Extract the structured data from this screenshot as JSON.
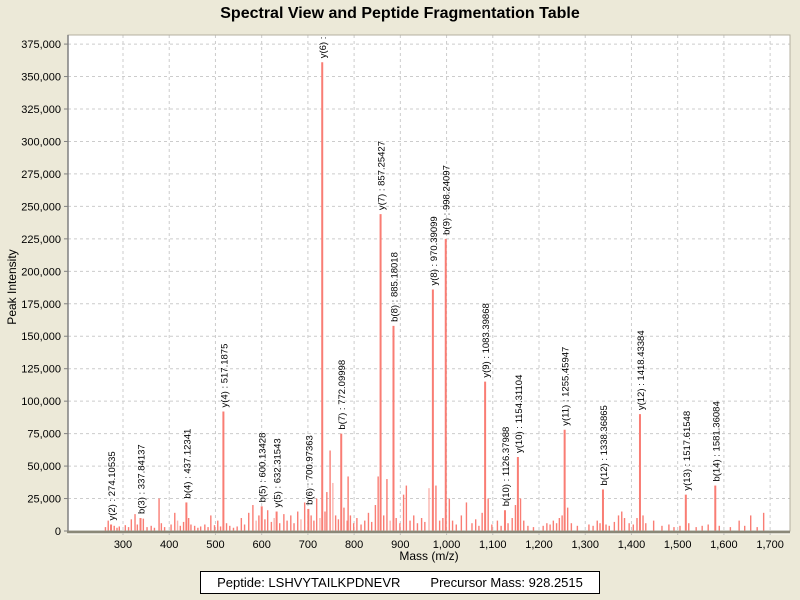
{
  "title": "Spectral View and Peptide Fragmentation Table",
  "footer": {
    "peptide_text": "Peptide: LSHVYTAILKPDNEVR",
    "precursor_text": "Precursor Mass: 928.2515"
  },
  "chart_data": {
    "type": "bar",
    "subtype": "mass-spectrum-stick-plot",
    "title": "Spectral View and Peptide Fragmentation Table",
    "xlabel": "Mass (m/z)",
    "ylabel": "Peak Intensity",
    "xlim": [
      181,
      1743
    ],
    "ylim": [
      0,
      382000
    ],
    "x_ticks": [
      300,
      400,
      500,
      600,
      700,
      800,
      900,
      1000,
      1100,
      1200,
      1300,
      1400,
      1500,
      1600,
      1700
    ],
    "y_ticks": [
      0,
      25000,
      50000,
      75000,
      100000,
      125000,
      150000,
      175000,
      200000,
      225000,
      250000,
      275000,
      300000,
      325000,
      350000,
      375000
    ],
    "grid": true,
    "legend": "none",
    "bar_color": "#f97d74",
    "bar_color_light": "#fbb5af",
    "grid_color": "#cccccc",
    "plot_bg": "#ffffff",
    "page_bg": "#ece9d8",
    "annotated_peaks": [
      {
        "label": "y(2) : 274.10535",
        "mz": 274.11,
        "intensity": 5000
      },
      {
        "label": "b(3) : 337.84137",
        "mz": 337.84,
        "intensity": 10000
      },
      {
        "label": "b(4) : 437.12341",
        "mz": 437.12,
        "intensity": 22000
      },
      {
        "label": "y(4) : 517.1875",
        "mz": 517.19,
        "intensity": 92000
      },
      {
        "label": "b(5) : 600.13428",
        "mz": 600.13,
        "intensity": 19000
      },
      {
        "label": "y(5) : 632.31543",
        "mz": 632.32,
        "intensity": 15000
      },
      {
        "label": "b(6) : 700.97363",
        "mz": 700.97,
        "intensity": 17000
      },
      {
        "label": "y(6) :",
        "mz": 731.0,
        "intensity": 361000
      },
      {
        "label": "b(7) : 772.09998",
        "mz": 772.1,
        "intensity": 75000
      },
      {
        "label": "y(7) : 857.25427",
        "mz": 857.25,
        "intensity": 244000
      },
      {
        "label": "b(8) : 885.18018",
        "mz": 885.18,
        "intensity": 158000
      },
      {
        "label": "y(8) : 970.39099",
        "mz": 970.39,
        "intensity": 186000
      },
      {
        "label": "b(9) : 998.24097",
        "mz": 998.24,
        "intensity": 225000
      },
      {
        "label": "y(9) : 1083.39868",
        "mz": 1083.4,
        "intensity": 115000
      },
      {
        "label": "b(10) : 1126.37988",
        "mz": 1126.38,
        "intensity": 16000
      },
      {
        "label": "y(10) : 1154.31104",
        "mz": 1154.31,
        "intensity": 57000
      },
      {
        "label": "y(11) : 1255.45947",
        "mz": 1255.46,
        "intensity": 78000
      },
      {
        "label": "b(12) : 1338.36865",
        "mz": 1338.37,
        "intensity": 32000
      },
      {
        "label": "y(12) : 1418.43384",
        "mz": 1418.43,
        "intensity": 90000
      },
      {
        "label": "y(13) : 1517.61548",
        "mz": 1517.62,
        "intensity": 28000
      },
      {
        "label": "b(14) : 1581.36084",
        "mz": 1581.36,
        "intensity": 35000
      }
    ],
    "background_peaks": [
      [
        262,
        3000
      ],
      [
        268,
        8000
      ],
      [
        281,
        4000
      ],
      [
        287,
        2500
      ],
      [
        292,
        3500
      ],
      [
        305,
        4500
      ],
      [
        312,
        3000
      ],
      [
        318,
        9000
      ],
      [
        326,
        13000
      ],
      [
        331,
        5000
      ],
      [
        344,
        9500
      ],
      [
        352,
        3000
      ],
      [
        361,
        4000
      ],
      [
        368,
        2500
      ],
      [
        378,
        25000
      ],
      [
        383,
        6000
      ],
      [
        390,
        3000
      ],
      [
        404,
        5000
      ],
      [
        412,
        14000
      ],
      [
        418,
        8000,
        1
      ],
      [
        424,
        4000
      ],
      [
        431,
        7000
      ],
      [
        442,
        10000
      ],
      [
        447,
        5000
      ],
      [
        455,
        4000
      ],
      [
        462,
        2500
      ],
      [
        468,
        3500
      ],
      [
        477,
        5000
      ],
      [
        484,
        3000
      ],
      [
        490,
        12000
      ],
      [
        498,
        4500
      ],
      [
        505,
        8000
      ],
      [
        511,
        3500
      ],
      [
        524,
        6000
      ],
      [
        531,
        4000
      ],
      [
        539,
        2500
      ],
      [
        547,
        3500
      ],
      [
        556,
        10000
      ],
      [
        563,
        5000
      ],
      [
        572,
        14000
      ],
      [
        581,
        20000
      ],
      [
        588,
        8000,
        1
      ],
      [
        594,
        12000
      ],
      [
        607,
        9000
      ],
      [
        613,
        16000
      ],
      [
        621,
        7000
      ],
      [
        627,
        10000,
        1
      ],
      [
        639,
        6000
      ],
      [
        648,
        13000
      ],
      [
        655,
        8000
      ],
      [
        663,
        12000
      ],
      [
        670,
        6000
      ],
      [
        678,
        15000
      ],
      [
        685,
        9000,
        1
      ],
      [
        693,
        22000
      ],
      [
        707,
        12000
      ],
      [
        713,
        8000
      ],
      [
        719,
        25000
      ],
      [
        726,
        10000,
        1
      ],
      [
        737,
        15000
      ],
      [
        741,
        30000
      ],
      [
        748,
        62000
      ],
      [
        754,
        37000,
        1
      ],
      [
        760,
        12000
      ],
      [
        766,
        9000
      ],
      [
        778,
        18000
      ],
      [
        785,
        8000
      ],
      [
        787,
        42000
      ],
      [
        792,
        12000
      ],
      [
        799,
        6000
      ],
      [
        806,
        10000
      ],
      [
        815,
        5000
      ],
      [
        823,
        8000
      ],
      [
        831,
        14000
      ],
      [
        838,
        7000
      ],
      [
        846,
        20000
      ],
      [
        852,
        42000
      ],
      [
        864,
        12000
      ],
      [
        871,
        40000
      ],
      [
        878,
        8000,
        1
      ],
      [
        891,
        10000
      ],
      [
        899,
        6000
      ],
      [
        907,
        28000
      ],
      [
        913,
        35000
      ],
      [
        921,
        8000
      ],
      [
        929,
        12000
      ],
      [
        937,
        6000
      ],
      [
        946,
        10000
      ],
      [
        953,
        7000
      ],
      [
        962,
        33000,
        1
      ],
      [
        977,
        35000
      ],
      [
        985,
        8000
      ],
      [
        992,
        10000
      ],
      [
        1006,
        25000
      ],
      [
        1013,
        8000
      ],
      [
        1021,
        5000
      ],
      [
        1032,
        12000
      ],
      [
        1043,
        22000
      ],
      [
        1055,
        6000
      ],
      [
        1063,
        9000
      ],
      [
        1070,
        4000
      ],
      [
        1077,
        14000
      ],
      [
        1090,
        25000
      ],
      [
        1098,
        5000
      ],
      [
        1110,
        8000
      ],
      [
        1118,
        4000
      ],
      [
        1133,
        6000
      ],
      [
        1142,
        10000
      ],
      [
        1149,
        20000
      ],
      [
        1160,
        25000
      ],
      [
        1167,
        8000
      ],
      [
        1176,
        4000
      ],
      [
        1188,
        3000
      ],
      [
        1209,
        4000
      ],
      [
        1217,
        6000
      ],
      [
        1224,
        5000
      ],
      [
        1231,
        8000
      ],
      [
        1238,
        6000
      ],
      [
        1244,
        10000
      ],
      [
        1250,
        12000
      ],
      [
        1262,
        18000
      ],
      [
        1270,
        6000
      ],
      [
        1283,
        4000
      ],
      [
        1308,
        5000
      ],
      [
        1317,
        4000
      ],
      [
        1326,
        8000
      ],
      [
        1332,
        6000
      ],
      [
        1345,
        5000
      ],
      [
        1352,
        4000
      ],
      [
        1363,
        7000
      ],
      [
        1372,
        12000
      ],
      [
        1379,
        15000
      ],
      [
        1385,
        10000
      ],
      [
        1395,
        6000
      ],
      [
        1404,
        5000
      ],
      [
        1412,
        10000
      ],
      [
        1425,
        12000
      ],
      [
        1431,
        6000
      ],
      [
        1448,
        8000
      ],
      [
        1466,
        4000
      ],
      [
        1481,
        5000
      ],
      [
        1492,
        3000
      ],
      [
        1505,
        4000
      ],
      [
        1524,
        6000
      ],
      [
        1540,
        3000
      ],
      [
        1553,
        4000
      ],
      [
        1566,
        5000
      ],
      [
        1590,
        4000
      ],
      [
        1614,
        3000
      ],
      [
        1633,
        8000
      ],
      [
        1645,
        4000
      ],
      [
        1658,
        12000
      ],
      [
        1672,
        3000
      ],
      [
        1686,
        14000
      ]
    ]
  }
}
